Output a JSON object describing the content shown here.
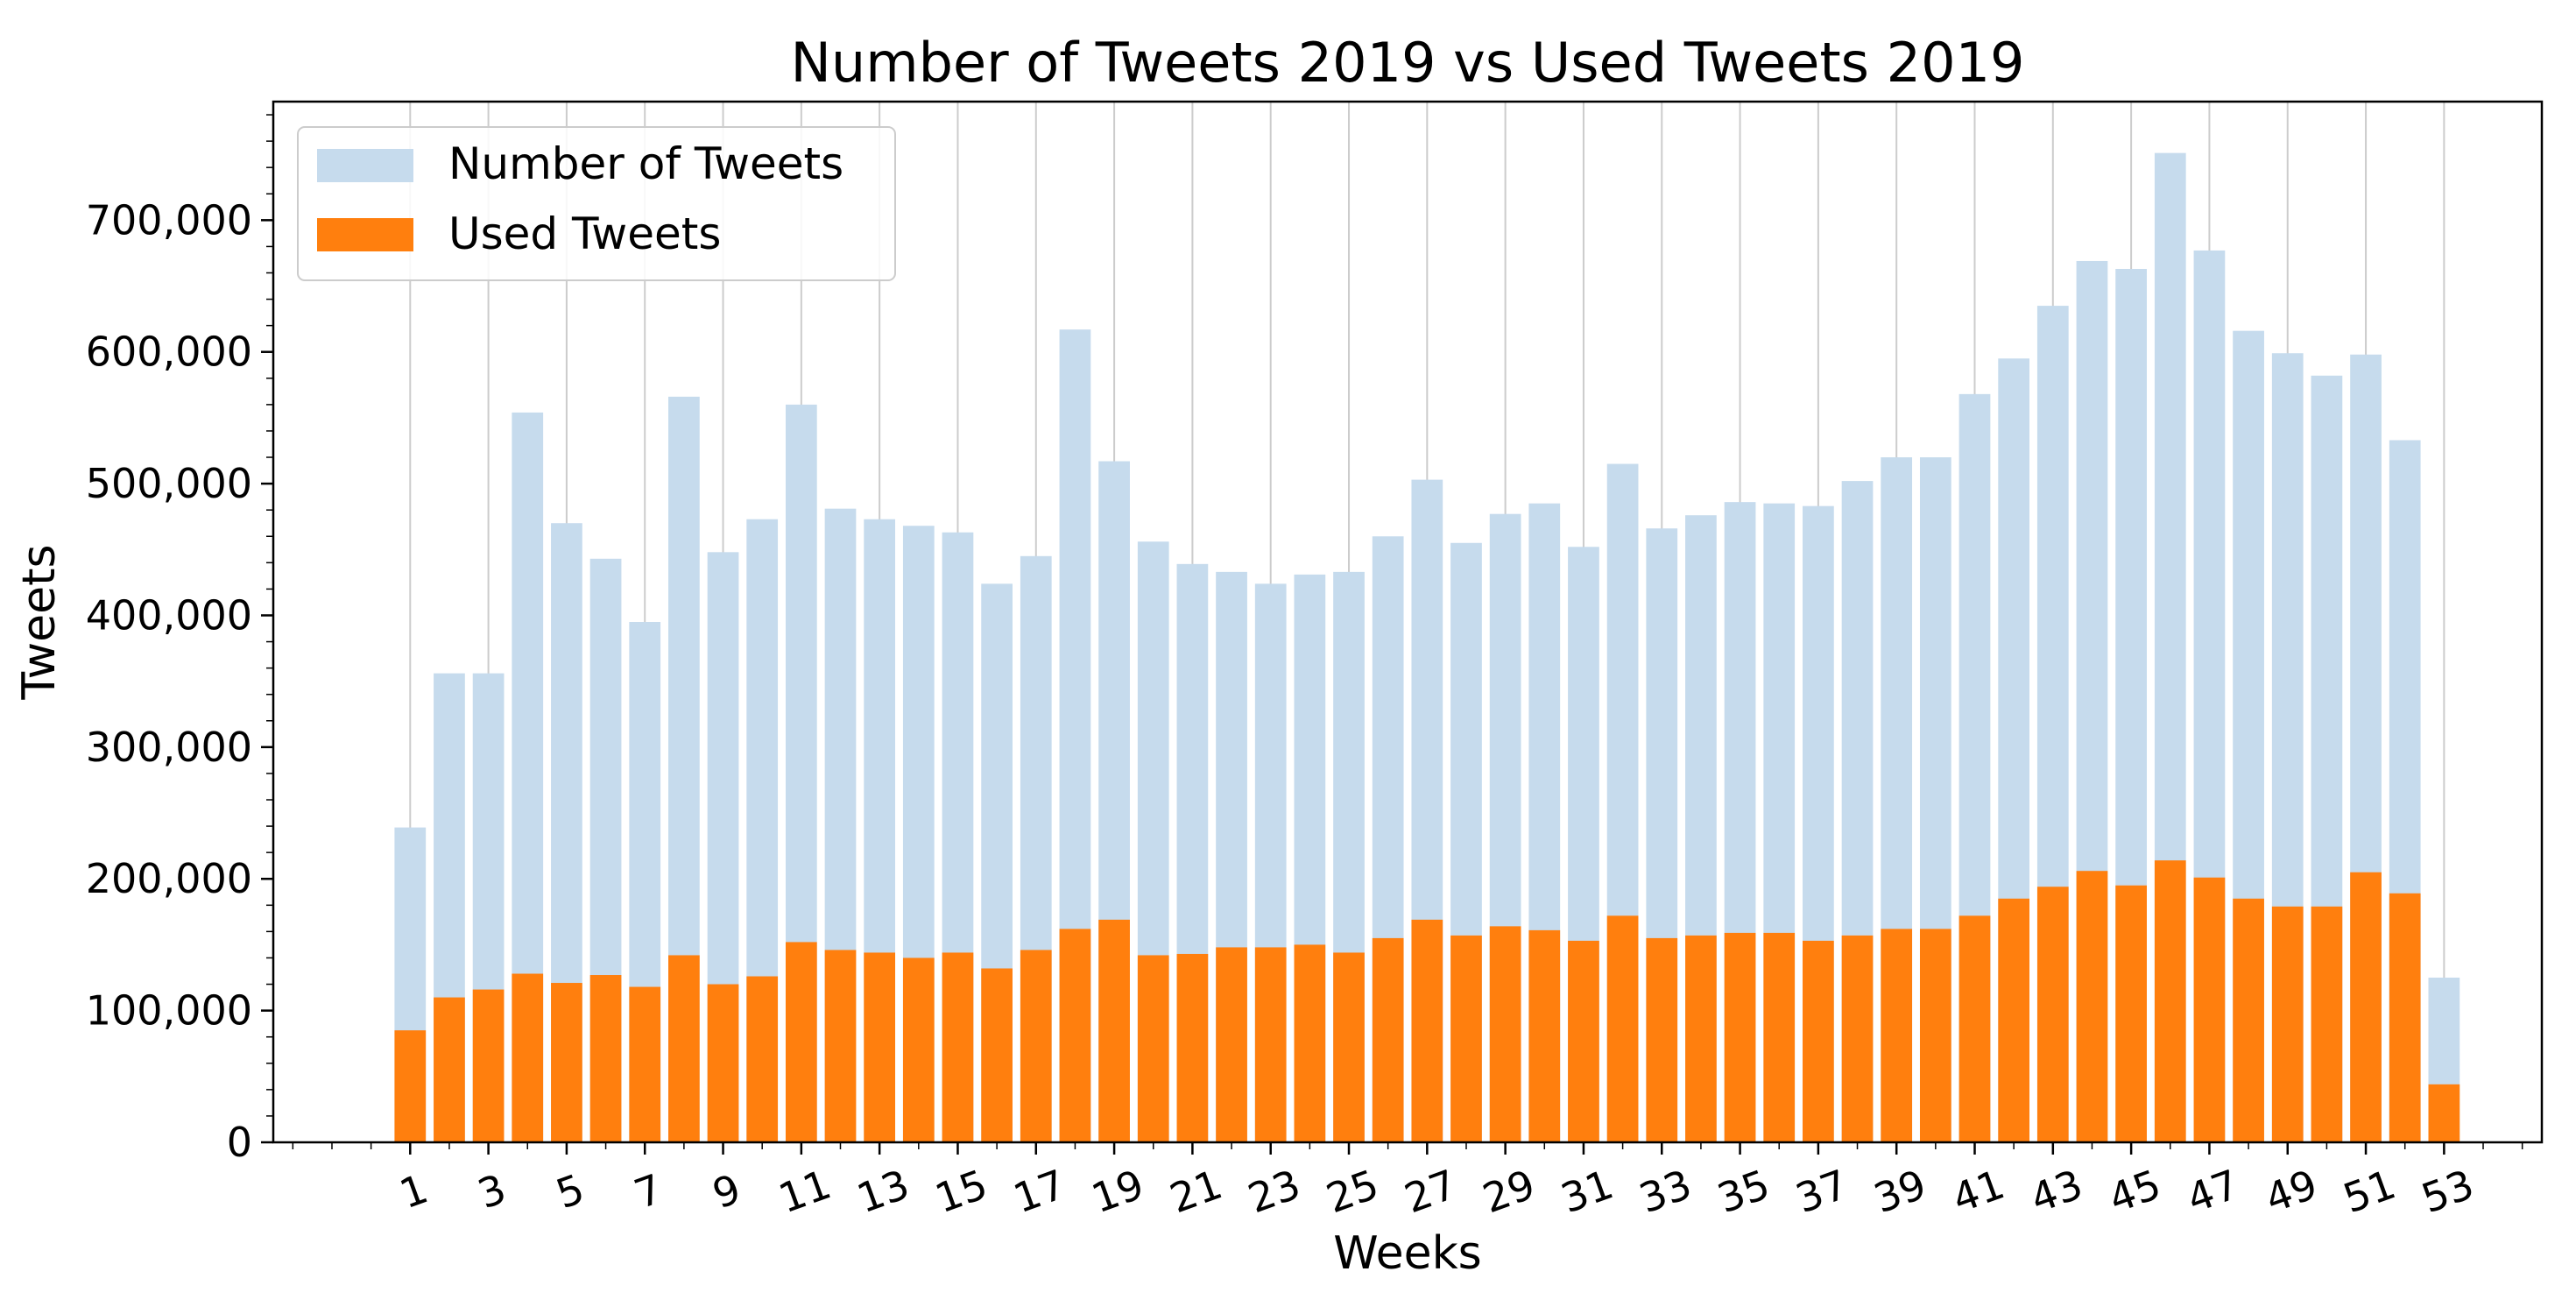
{
  "chart_data": {
    "type": "bar",
    "title": "Number of Tweets 2019  vs Used Tweets 2019",
    "xlabel": "Weeks",
    "ylabel": "Tweets",
    "ylim": [
      0,
      790000
    ],
    "xlim": [
      -2.5,
      55.5
    ],
    "y_ticks": [
      {
        "value": 0,
        "label": "0"
      },
      {
        "value": 100000,
        "label": "100,000"
      },
      {
        "value": 200000,
        "label": "200,000"
      },
      {
        "value": 300000,
        "label": "300,000"
      },
      {
        "value": 400000,
        "label": "400,000"
      },
      {
        "value": 500000,
        "label": "500,000"
      },
      {
        "value": 600000,
        "label": "600,000"
      },
      {
        "value": 700000,
        "label": "700,000"
      }
    ],
    "x_ticks": [
      {
        "value": 1,
        "label": "1"
      },
      {
        "value": 3,
        "label": "3"
      },
      {
        "value": 5,
        "label": "5"
      },
      {
        "value": 7,
        "label": "7"
      },
      {
        "value": 9,
        "label": "9"
      },
      {
        "value": 11,
        "label": "11"
      },
      {
        "value": 13,
        "label": "13"
      },
      {
        "value": 15,
        "label": "15"
      },
      {
        "value": 17,
        "label": "17"
      },
      {
        "value": 19,
        "label": "19"
      },
      {
        "value": 21,
        "label": "21"
      },
      {
        "value": 23,
        "label": "23"
      },
      {
        "value": 25,
        "label": "25"
      },
      {
        "value": 27,
        "label": "27"
      },
      {
        "value": 29,
        "label": "29"
      },
      {
        "value": 31,
        "label": "31"
      },
      {
        "value": 33,
        "label": "33"
      },
      {
        "value": 35,
        "label": "35"
      },
      {
        "value": 37,
        "label": "37"
      },
      {
        "value": 39,
        "label": "39"
      },
      {
        "value": 41,
        "label": "41"
      },
      {
        "value": 43,
        "label": "43"
      },
      {
        "value": 45,
        "label": "45"
      },
      {
        "value": 47,
        "label": "47"
      },
      {
        "value": 49,
        "label": "49"
      },
      {
        "value": 51,
        "label": "51"
      },
      {
        "value": 53,
        "label": "53"
      }
    ],
    "x_tick_rotation_deg": -20,
    "grid": "vertical at odd week ticks",
    "legend_position": "top-left",
    "weeks": [
      1,
      2,
      3,
      4,
      5,
      6,
      7,
      8,
      9,
      10,
      11,
      12,
      13,
      14,
      15,
      16,
      17,
      18,
      19,
      20,
      21,
      22,
      23,
      24,
      25,
      26,
      27,
      28,
      29,
      30,
      31,
      32,
      33,
      34,
      35,
      36,
      37,
      38,
      39,
      40,
      41,
      42,
      43,
      44,
      45,
      46,
      47,
      48,
      49,
      50,
      51,
      52,
      53
    ],
    "series": [
      {
        "name": "Number of Tweets",
        "color": "#c6dbed",
        "values": [
          239000,
          356000,
          356000,
          554000,
          470000,
          443000,
          395000,
          566000,
          448000,
          473000,
          560000,
          481000,
          473000,
          468000,
          463000,
          424000,
          445000,
          617000,
          517000,
          456000,
          439000,
          433000,
          424000,
          431000,
          433000,
          460000,
          503000,
          455000,
          477000,
          485000,
          452000,
          515000,
          466000,
          476000,
          486000,
          485000,
          483000,
          502000,
          520000,
          520000,
          568000,
          595000,
          635000,
          669000,
          663000,
          751000,
          677000,
          616000,
          599000,
          582000,
          598000,
          533000,
          125000
        ]
      },
      {
        "name": "Used Tweets",
        "color": "#ff7f0e",
        "values": [
          85000,
          110000,
          116000,
          128000,
          121000,
          127000,
          118000,
          142000,
          120000,
          126000,
          152000,
          146000,
          144000,
          140000,
          144000,
          132000,
          146000,
          162000,
          169000,
          142000,
          143000,
          148000,
          148000,
          150000,
          144000,
          155000,
          169000,
          157000,
          164000,
          161000,
          153000,
          172000,
          155000,
          157000,
          159000,
          159000,
          153000,
          157000,
          162000,
          162000,
          172000,
          185000,
          194000,
          206000,
          195000,
          214000,
          201000,
          185000,
          179000,
          179000,
          205000,
          189000,
          44000
        ]
      }
    ]
  }
}
